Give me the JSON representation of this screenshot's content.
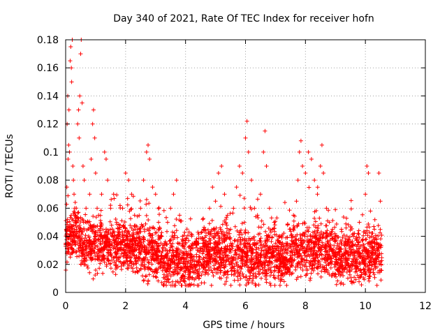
{
  "chart_data": {
    "type": "scatter",
    "title": "Day 340 of 2021, Rate Of TEC Index for receiver hofn",
    "xlabel": "GPS time / hours",
    "ylabel": "ROTI / TECUs",
    "xlim": [
      0,
      12
    ],
    "ylim": [
      0,
      0.18
    ],
    "xticks": [
      0,
      2,
      4,
      6,
      8,
      10,
      12
    ],
    "xtick_labels": [
      "0",
      "2",
      "4",
      "6",
      "8",
      "10",
      "12"
    ],
    "yticks": [
      0,
      0.02,
      0.04,
      0.06,
      0.08,
      0.1,
      0.12,
      0.14,
      0.16,
      0.18
    ],
    "ytick_labels": [
      "0",
      "0.02",
      "0.04",
      "0.06",
      "0.08",
      "0.1",
      "0.12",
      "0.14",
      "0.16",
      "0.18"
    ],
    "grid": true,
    "marker": "+",
    "series": [
      {
        "name": "ROTI",
        "color": "#ff0000",
        "points": [
          [
            0.0,
            0.035
          ],
          [
            0.02,
            0.045
          ],
          [
            0.04,
            0.075
          ],
          [
            0.05,
            0.12
          ],
          [
            0.07,
            0.14
          ],
          [
            0.08,
            0.095
          ],
          [
            0.1,
            0.105
          ],
          [
            0.11,
            0.13
          ],
          [
            0.13,
            0.1
          ],
          [
            0.15,
            0.165
          ],
          [
            0.17,
            0.175
          ],
          [
            0.19,
            0.16
          ],
          [
            0.2,
            0.15
          ],
          [
            0.22,
            0.18
          ],
          [
            0.24,
            0.09
          ],
          [
            0.26,
            0.08
          ],
          [
            0.28,
            0.07
          ],
          [
            0.3,
            0.06
          ],
          [
            0.33,
            0.05
          ],
          [
            0.36,
            0.045
          ],
          [
            0.4,
            0.12
          ],
          [
            0.43,
            0.13
          ],
          [
            0.45,
            0.11
          ],
          [
            0.47,
            0.14
          ],
          [
            0.5,
            0.17
          ],
          [
            0.52,
            0.18
          ],
          [
            0.55,
            0.135
          ],
          [
            0.58,
            0.09
          ],
          [
            0.62,
            0.08
          ],
          [
            0.68,
            0.06
          ],
          [
            0.75,
            0.05
          ],
          [
            0.8,
            0.07
          ],
          [
            0.85,
            0.095
          ],
          [
            0.9,
            0.12
          ],
          [
            0.93,
            0.13
          ],
          [
            0.97,
            0.11
          ],
          [
            1.0,
            0.085
          ],
          [
            1.05,
            0.06
          ],
          [
            1.1,
            0.055
          ],
          [
            1.2,
            0.07
          ],
          [
            1.3,
            0.1
          ],
          [
            1.35,
            0.095
          ],
          [
            1.4,
            0.08
          ],
          [
            1.5,
            0.06
          ],
          [
            1.6,
            0.07
          ],
          [
            1.7,
            0.05
          ],
          [
            1.8,
            0.045
          ],
          [
            1.9,
            0.06
          ],
          [
            2.0,
            0.085
          ],
          [
            2.1,
            0.08
          ],
          [
            2.2,
            0.07
          ],
          [
            2.3,
            0.055
          ],
          [
            2.4,
            0.045
          ],
          [
            2.5,
            0.06
          ],
          [
            2.6,
            0.08
          ],
          [
            2.7,
            0.1
          ],
          [
            2.75,
            0.105
          ],
          [
            2.8,
            0.095
          ],
          [
            2.9,
            0.075
          ],
          [
            3.0,
            0.07
          ],
          [
            3.1,
            0.05
          ],
          [
            3.2,
            0.04
          ],
          [
            3.3,
            0.035
          ],
          [
            3.4,
            0.05
          ],
          [
            3.5,
            0.06
          ],
          [
            3.6,
            0.07
          ],
          [
            3.7,
            0.08
          ],
          [
            3.8,
            0.055
          ],
          [
            3.9,
            0.04
          ],
          [
            4.0,
            0.035
          ],
          [
            4.2,
            0.04
          ],
          [
            4.4,
            0.035
          ],
          [
            4.6,
            0.045
          ],
          [
            4.8,
            0.06
          ],
          [
            4.9,
            0.075
          ],
          [
            5.0,
            0.065
          ],
          [
            5.1,
            0.085
          ],
          [
            5.2,
            0.09
          ],
          [
            5.3,
            0.07
          ],
          [
            5.4,
            0.055
          ],
          [
            5.5,
            0.045
          ],
          [
            5.6,
            0.06
          ],
          [
            5.7,
            0.075
          ],
          [
            5.8,
            0.09
          ],
          [
            5.9,
            0.085
          ],
          [
            6.0,
            0.11
          ],
          [
            6.05,
            0.122
          ],
          [
            6.1,
            0.1
          ],
          [
            6.2,
            0.08
          ],
          [
            6.3,
            0.06
          ],
          [
            6.4,
            0.055
          ],
          [
            6.5,
            0.07
          ],
          [
            6.6,
            0.1
          ],
          [
            6.65,
            0.115
          ],
          [
            6.7,
            0.09
          ],
          [
            6.8,
            0.06
          ],
          [
            6.9,
            0.045
          ],
          [
            7.0,
            0.035
          ],
          [
            7.2,
            0.04
          ],
          [
            7.4,
            0.035
          ],
          [
            7.5,
            0.045
          ],
          [
            7.6,
            0.055
          ],
          [
            7.7,
            0.065
          ],
          [
            7.75,
            0.08
          ],
          [
            7.8,
            0.1
          ],
          [
            7.85,
            0.108
          ],
          [
            7.9,
            0.09
          ],
          [
            8.0,
            0.085
          ],
          [
            8.1,
            0.1
          ],
          [
            8.2,
            0.095
          ],
          [
            8.3,
            0.08
          ],
          [
            8.4,
            0.07
          ],
          [
            8.5,
            0.09
          ],
          [
            8.55,
            0.105
          ],
          [
            8.6,
            0.085
          ],
          [
            8.7,
            0.06
          ],
          [
            8.8,
            0.05
          ],
          [
            8.9,
            0.045
          ],
          [
            9.0,
            0.04
          ],
          [
            9.2,
            0.045
          ],
          [
            9.4,
            0.035
          ],
          [
            9.6,
            0.04
          ],
          [
            9.8,
            0.05
          ],
          [
            10.0,
            0.07
          ],
          [
            10.05,
            0.09
          ],
          [
            10.1,
            0.085
          ],
          [
            10.2,
            0.04
          ],
          [
            10.3,
            0.045
          ],
          [
            10.45,
            0.085
          ],
          [
            10.5,
            0.065
          ]
        ]
      }
    ]
  }
}
